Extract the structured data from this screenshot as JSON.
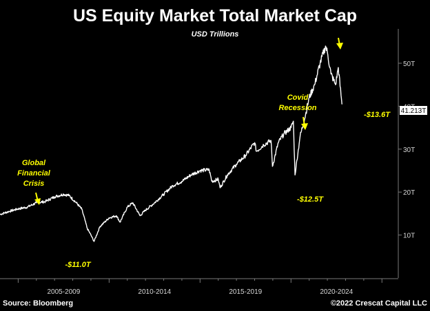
{
  "chart_data": {
    "type": "line",
    "title": "US Equity Market Total Market Cap",
    "subtitle": "USD Trillions",
    "ylim": [
      0,
      58
    ],
    "y_ticks": [
      {
        "value": 10,
        "label": "10T"
      },
      {
        "value": 20,
        "label": "20T"
      },
      {
        "value": 30,
        "label": "30T"
      },
      {
        "value": 40,
        "label": "40T"
      },
      {
        "value": 50,
        "label": "50T"
      }
    ],
    "x_periods": [
      "2005-2009",
      "2010-2014",
      "2015-2019",
      "2020-2024"
    ],
    "xlim": [
      2004.0,
      2025.9
    ],
    "grid": false,
    "last_value_label": "41.213T",
    "last_value": 41.213,
    "series": [
      {
        "name": "",
        "color": "#ffffff",
        "x": [
          2004.0,
          2004.5,
          2005.0,
          2005.5,
          2006.0,
          2006.5,
          2007.0,
          2007.5,
          2007.8,
          2008.2,
          2008.5,
          2008.8,
          2009.0,
          2009.17,
          2009.5,
          2010.0,
          2010.4,
          2010.6,
          2011.0,
          2011.3,
          2011.7,
          2012.0,
          2012.5,
          2013.0,
          2013.5,
          2014.0,
          2014.5,
          2015.0,
          2015.5,
          2015.65,
          2016.0,
          2016.1,
          2016.5,
          2017.0,
          2017.5,
          2018.0,
          2018.1,
          2018.5,
          2018.9,
          2018.98,
          2019.3,
          2019.6,
          2020.0,
          2020.13,
          2020.22,
          2020.5,
          2020.8,
          2021.0,
          2021.3,
          2021.6,
          2021.9,
          2022.0,
          2022.2,
          2022.45,
          2022.6,
          2022.8
        ],
        "y": [
          14.8,
          15.5,
          16.1,
          16.5,
          17.5,
          17.8,
          18.9,
          19.5,
          19.2,
          17.5,
          16.0,
          11.5,
          10.0,
          8.5,
          12.0,
          14.0,
          14.5,
          13.0,
          16.5,
          17.5,
          14.5,
          15.8,
          17.5,
          19.5,
          21.5,
          22.5,
          24.0,
          25.0,
          25.2,
          22.5,
          23.0,
          21.0,
          24.0,
          26.5,
          28.5,
          31.5,
          29.5,
          31.0,
          32.0,
          26.0,
          31.5,
          33.5,
          35.0,
          36.5,
          24.0,
          33.0,
          38.0,
          42.0,
          45.0,
          50.0,
          54.0,
          52.5,
          47.5,
          45.0,
          49.0,
          40.5
        ]
      }
    ]
  },
  "annotations": {
    "gfc_line1": "Global",
    "gfc_line2": "Financial",
    "gfc_line3": "Crisis",
    "gfc_drop": "-$11.0T",
    "covid_line1": "Covid",
    "covid_line2": "Recession",
    "covid_drop": "-$12.5T",
    "recent_drop": "-$13.6T"
  },
  "footer": {
    "source": "Source: Bloomberg",
    "copyright": "©2022 Crescat Capital LLC"
  },
  "colors": {
    "background": "#000000",
    "line": "#ffffff",
    "annotation": "#ffff00"
  }
}
